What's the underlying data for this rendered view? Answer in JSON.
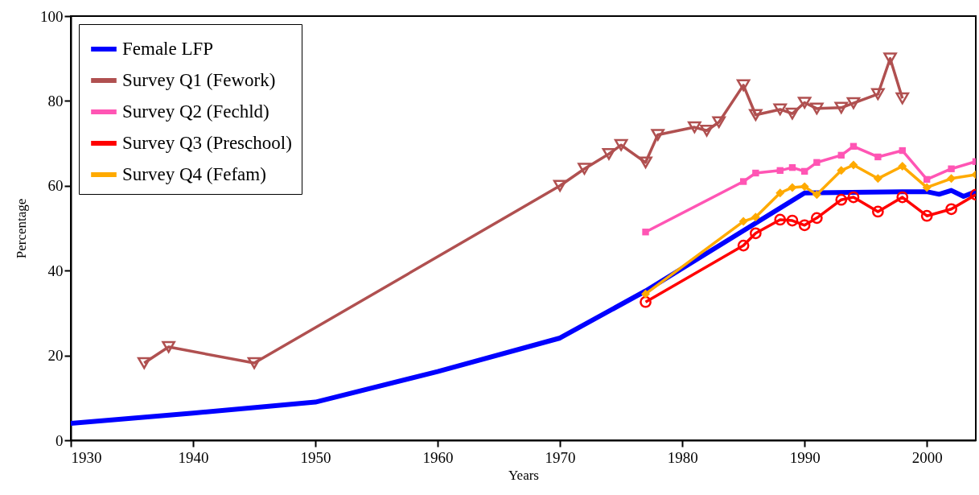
{
  "chart_data": {
    "type": "line",
    "xlabel": "Years",
    "ylabel": "Percentage",
    "xlim": [
      1930,
      2004
    ],
    "xticks": [
      1930,
      1940,
      1950,
      1960,
      1970,
      1980,
      1990,
      2000
    ],
    "ylim": [
      0,
      100
    ],
    "yticks": [
      0,
      20,
      40,
      60,
      80,
      100
    ],
    "grid": false,
    "legend": "top left",
    "line_style": "solid",
    "series": [
      {
        "name": "Female LFP",
        "color": "#0000ff",
        "marker": "none",
        "x": [
          1930,
          1940,
          1950,
          1960,
          1970,
          1977,
          1990,
          1998,
          2000,
          2001,
          2002,
          2003,
          2004
        ],
        "values": [
          4,
          6.4,
          9,
          16.2,
          24.1,
          35.2,
          58.3,
          58.6,
          58.6,
          58,
          58.9,
          57.5,
          58.6
        ]
      },
      {
        "name": "Survey Q1 (Fework)",
        "color": "#b05050",
        "marker": "triangle",
        "x": [
          1936,
          1938,
          1945,
          1970,
          1972,
          1974,
          1975,
          1977,
          1978,
          1981,
          1982,
          1983,
          1985,
          1986,
          1988,
          1989,
          1990,
          1991,
          1993,
          1994,
          1996,
          1997,
          1998
        ],
        "values": [
          18.2,
          22,
          18.2,
          60,
          64,
          67.5,
          69.6,
          65.5,
          72,
          73.8,
          73,
          75,
          83.7,
          76.7,
          78,
          77,
          79.6,
          78.2,
          78.4,
          79.5,
          81.6,
          90,
          80.6
        ]
      },
      {
        "name": "Survey Q2 (Fechld)",
        "color": "#ff55b4",
        "marker": "square",
        "x": [
          1977,
          1985,
          1986,
          1988,
          1989,
          1990,
          1991,
          1993,
          1994,
          1996,
          1998,
          2000,
          2002,
          2004
        ],
        "values": [
          49.1,
          61,
          63,
          63.6,
          64.3,
          63.4,
          65.5,
          67.2,
          69.3,
          66.8,
          68.3,
          61.5,
          64,
          65.7
        ]
      },
      {
        "name": "Survey Q3 (Preschool)",
        "color": "#ff0000",
        "marker": "circle",
        "x": [
          1977,
          1985,
          1986,
          1988,
          1989,
          1990,
          1991,
          1993,
          1994,
          1996,
          1998,
          2000,
          2002,
          2004
        ],
        "values": [
          32.6,
          45.9,
          48.8,
          52,
          51.8,
          50.7,
          52.4,
          56.7,
          57.3,
          53.9,
          57.3,
          52.9,
          54.5,
          57.9
        ]
      },
      {
        "name": "Survey Q4 (Fefam)",
        "color": "#ffaa00",
        "marker": "diamond",
        "x": [
          1977,
          1985,
          1986,
          1988,
          1989,
          1990,
          1991,
          1993,
          1994,
          1996,
          1998,
          2000,
          2002,
          2004
        ],
        "values": [
          34.5,
          51.6,
          52.6,
          58.3,
          59.6,
          59.8,
          57.9,
          63.6,
          64.9,
          61.7,
          64.6,
          59.6,
          61.7,
          62.6
        ]
      }
    ]
  }
}
